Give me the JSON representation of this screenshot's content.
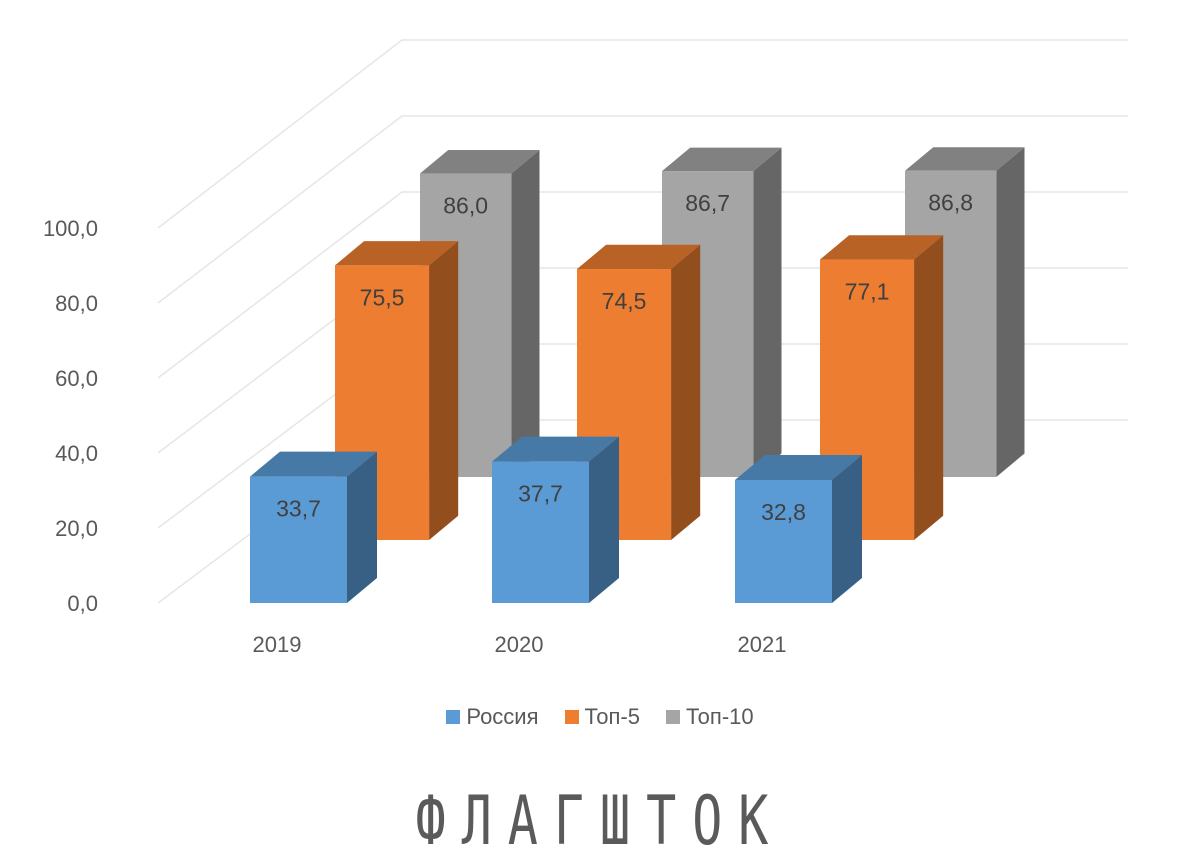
{
  "chart_data": {
    "type": "bar",
    "categories": [
      "2019",
      "2020",
      "2021"
    ],
    "series": [
      {
        "name": "Россия",
        "values": [
          33.7,
          37.7,
          32.8
        ],
        "labels": [
          "33,7",
          "37,7",
          "32,8"
        ],
        "color": "#5b9bd5"
      },
      {
        "name": "Топ-5",
        "values": [
          75.5,
          74.5,
          77.1
        ],
        "labels": [
          "75,5",
          "74,5",
          "77,1"
        ],
        "color": "#ed7d31"
      },
      {
        "name": "Топ-10",
        "values": [
          86.0,
          86.7,
          86.8
        ],
        "labels": [
          "86,0",
          "86,7",
          "86,8"
        ],
        "color": "#a5a5a5"
      }
    ],
    "y_ticks": [
      "0,0",
      "20,0",
      "40,0",
      "60,0",
      "80,0",
      "100,0"
    ],
    "ylim": [
      0,
      100
    ],
    "grid": true,
    "legend_position": "bottom",
    "style": "3d-clustered-column"
  },
  "legend": {
    "items": [
      "Россия",
      "Топ-5",
      "Топ-10"
    ]
  },
  "logo": {
    "text": "ФЛАГШТОК"
  }
}
